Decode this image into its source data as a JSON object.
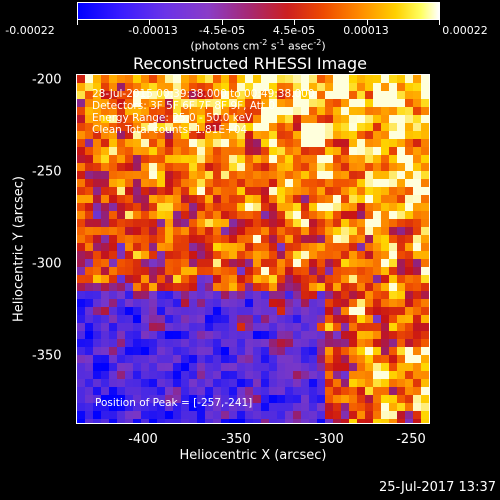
{
  "chart_data": {
    "type": "heatmap",
    "title": "Reconstructed RHESSI Image",
    "xlabel": "Heliocentric X (arcsec)",
    "ylabel": "Heliocentric Y (arcsec)",
    "xlim": [
      -435,
      -245
    ],
    "ylim": [
      -390,
      -198
    ],
    "xticks": [
      -400,
      -350,
      -300,
      -250
    ],
    "yticks": [
      -200,
      -250,
      -300,
      -350
    ],
    "colorbar": {
      "ticks": [
        "-0.00022",
        "-0.00013",
        "-4.5e-05",
        "4.5e-05",
        "0.00013",
        "0.00022"
      ],
      "units_main": "(photons cm",
      "units_parts": [
        "-2",
        " s",
        "-1",
        " asec",
        "-2",
        ")"
      ]
    },
    "annotations": [
      "28-Jul-2015 00:39:38.000 to 00:49:38.000",
      "Detectors: 3F 5F 6F 7F 8F 9F, Att 0",
      "Energy Range: 25.0 - 50.0 keV",
      "Clean    Total counts: 1.81E+04"
    ],
    "peak_label": "Position of Peak = [-257,-241]",
    "colors": {
      "low": "#0000ff",
      "mid": "#7a3cd0",
      "high": "#ff8000",
      "peak": "#ffffff"
    }
  },
  "timestamp": "25-Jul-2017 13:37"
}
